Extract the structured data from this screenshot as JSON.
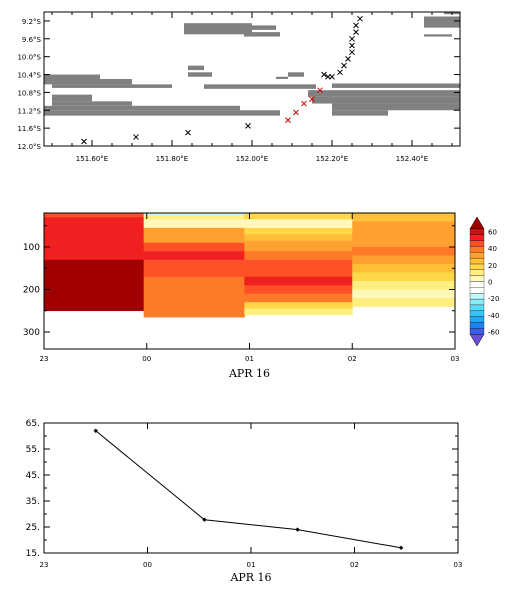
{
  "chart_data": [
    {
      "type": "scatter",
      "title": "",
      "xlabel": "",
      "ylabel": "",
      "xlim": [
        151.48,
        152.52
      ],
      "ylim": [
        -12.0,
        -9.0
      ],
      "y_reversed": false,
      "x_ticks": [
        151.6,
        151.8,
        152.0,
        152.2,
        152.4
      ],
      "x_tick_labels": [
        "151.60°E",
        "151.80°E",
        "152.00°E",
        "152.20°E",
        "152.40°E"
      ],
      "y_ticks": [
        -9.2,
        -9.6,
        -10.0,
        -10.4,
        -10.8,
        -11.2,
        -11.6,
        -12.0
      ],
      "y_tick_labels": [
        "9.2°S",
        "9.6°S",
        "10.0°S",
        "10.4°S",
        "10.8°S",
        "11.2°S",
        "11.6°S",
        "12.0°S"
      ],
      "land_color": "#808080",
      "land_bands": [
        {
          "x": [
            152.43,
            152.52
          ],
          "y": [
            -9.35,
            -9.1
          ]
        },
        {
          "x": [
            152.48,
            152.52
          ],
          "y": [
            -9.05,
            -9.0
          ]
        },
        {
          "x": [
            151.83,
            152.0
          ],
          "y": [
            -9.5,
            -9.25
          ]
        },
        {
          "x": [
            152.0,
            152.06
          ],
          "y": [
            -9.4,
            -9.3
          ]
        },
        {
          "x": [
            151.98,
            152.07
          ],
          "y": [
            -9.55,
            -9.45
          ]
        },
        {
          "x": [
            152.43,
            152.5
          ],
          "y": [
            -9.55,
            -9.5
          ]
        },
        {
          "x": [
            151.84,
            151.88
          ],
          "y": [
            -10.3,
            -10.2
          ]
        },
        {
          "x": [
            151.84,
            151.9
          ],
          "y": [
            -10.45,
            -10.35
          ]
        },
        {
          "x": [
            152.09,
            152.13
          ],
          "y": [
            -10.45,
            -10.35
          ]
        },
        {
          "x": [
            152.06,
            152.09
          ],
          "y": [
            -10.5,
            -10.45
          ]
        },
        {
          "x": [
            151.48,
            151.62
          ],
          "y": [
            -10.5,
            -10.4
          ]
        },
        {
          "x": [
            151.48,
            151.7
          ],
          "y": [
            -10.62,
            -10.5
          ]
        },
        {
          "x": [
            151.5,
            151.8
          ],
          "y": [
            -10.7,
            -10.62
          ]
        },
        {
          "x": [
            151.88,
            152.16
          ],
          "y": [
            -10.72,
            -10.62
          ]
        },
        {
          "x": [
            152.2,
            152.52
          ],
          "y": [
            -10.7,
            -10.6
          ]
        },
        {
          "x": [
            152.14,
            152.52
          ],
          "y": [
            -10.9,
            -10.75
          ]
        },
        {
          "x": [
            151.5,
            151.6
          ],
          "y": [
            -11.0,
            -10.85
          ]
        },
        {
          "x": [
            151.5,
            151.7
          ],
          "y": [
            -11.1,
            -11.0
          ]
        },
        {
          "x": [
            151.48,
            151.97
          ],
          "y": [
            -11.2,
            -11.1
          ]
        },
        {
          "x": [
            151.48,
            152.07
          ],
          "y": [
            -11.32,
            -11.2
          ]
        },
        {
          "x": [
            152.15,
            152.52
          ],
          "y": [
            -11.05,
            -10.9
          ]
        },
        {
          "x": [
            152.2,
            152.52
          ],
          "y": [
            -11.2,
            -11.05
          ]
        },
        {
          "x": [
            152.2,
            152.34
          ],
          "y": [
            -11.32,
            -11.2
          ]
        }
      ],
      "series": [
        {
          "marker": "x",
          "color": "#000000",
          "x": [
            151.58,
            151.71,
            151.84,
            151.99,
            152.18,
            152.19,
            152.2,
            152.22,
            152.23,
            152.24,
            152.25,
            152.25,
            152.25,
            152.26,
            152.26,
            152.27
          ],
          "y": [
            -11.9,
            -11.8,
            -11.7,
            -11.55,
            -10.4,
            -10.45,
            -10.45,
            -10.35,
            -10.2,
            -10.05,
            -9.9,
            -9.75,
            -9.6,
            -9.45,
            -9.3,
            -9.15
          ]
        },
        {
          "marker": "x",
          "color": "#cc0000",
          "x": [
            152.09,
            152.11,
            152.13,
            152.15,
            152.17
          ],
          "y": [
            -11.42,
            -11.25,
            -11.05,
            -10.95,
            -10.75
          ]
        }
      ]
    },
    {
      "type": "heatmap",
      "title": "",
      "xlabel": "APR 16",
      "ylabel": "",
      "xlim": [
        0,
        4
      ],
      "ylim": [
        340,
        20
      ],
      "y_reversed": true,
      "x_ticks": [
        0,
        1,
        2,
        3,
        4
      ],
      "x_tick_labels": [
        "23",
        "00",
        "01",
        "02",
        "03"
      ],
      "y_ticks": [
        100,
        200,
        300
      ],
      "y_tick_labels": [
        "100",
        "200",
        "300"
      ],
      "colorbar": {
        "ticks": [
          60,
          40,
          20,
          0,
          -20,
          -40,
          -60
        ],
        "tick_labels": [
          "60",
          "40",
          "20",
          "0",
          "-20",
          "-40",
          "-60"
        ],
        "range": [
          -70,
          70
        ],
        "colors": [
          "#6a4ed8",
          "#3a5ee8",
          "#1b84f0",
          "#1fa8f6",
          "#33c4f8",
          "#55dcf6",
          "#86ecf6",
          "#c2f6f8",
          "#ffffff",
          "#ffffff",
          "#fff8b8",
          "#ffee80",
          "#ffd84a",
          "#ffc038",
          "#ffa030",
          "#ff7a28",
          "#ff5028",
          "#f02020",
          "#d01010",
          "#a00000"
        ]
      },
      "columns": [
        {
          "x": [
            0,
            0.97
          ],
          "bands": [
            {
              "depth": [
                20,
                30
              ],
              "value": 45
            },
            {
              "depth": [
                30,
                60
              ],
              "value": 55
            },
            {
              "depth": [
                60,
                90
              ],
              "value": 52
            },
            {
              "depth": [
                90,
                130
              ],
              "value": 50
            },
            {
              "depth": [
                130,
                250
              ],
              "value": 65
            }
          ]
        },
        {
          "x": [
            0.97,
            1.95
          ],
          "bands": [
            {
              "depth": [
                20,
                25
              ],
              "value": -15
            },
            {
              "depth": [
                25,
                35
              ],
              "value": 12
            },
            {
              "depth": [
                35,
                55
              ],
              "value": 0
            },
            {
              "depth": [
                55,
                90
              ],
              "value": 28
            },
            {
              "depth": [
                90,
                110
              ],
              "value": 45
            },
            {
              "depth": [
                110,
                130
              ],
              "value": 52
            },
            {
              "depth": [
                130,
                150
              ],
              "value": 48
            },
            {
              "depth": [
                150,
                170
              ],
              "value": 42
            },
            {
              "depth": [
                170,
                265
              ],
              "value": 40
            }
          ]
        },
        {
          "x": [
            1.95,
            3.0
          ],
          "bands": [
            {
              "depth": [
                20,
                35
              ],
              "value": 18
            },
            {
              "depth": [
                35,
                55
              ],
              "value": 2
            },
            {
              "depth": [
                55,
                70
              ],
              "value": 15
            },
            {
              "depth": [
                70,
                85
              ],
              "value": 22
            },
            {
              "depth": [
                85,
                110
              ],
              "value": 30
            },
            {
              "depth": [
                110,
                130
              ],
              "value": 38
            },
            {
              "depth": [
                130,
                150
              ],
              "value": 46
            },
            {
              "depth": [
                150,
                170
              ],
              "value": 48
            },
            {
              "depth": [
                170,
                190
              ],
              "value": 55
            },
            {
              "depth": [
                190,
                210
              ],
              "value": 45
            },
            {
              "depth": [
                210,
                230
              ],
              "value": 35
            },
            {
              "depth": [
                230,
                245
              ],
              "value": 20
            },
            {
              "depth": [
                245,
                260
              ],
              "value": 10
            }
          ]
        },
        {
          "x": [
            3.0,
            4.0
          ],
          "bands": [
            {
              "depth": [
                20,
                40
              ],
              "value": 25
            },
            {
              "depth": [
                40,
                60
              ],
              "value": 30
            },
            {
              "depth": [
                60,
                80
              ],
              "value": 28
            },
            {
              "depth": [
                80,
                100
              ],
              "value": 32
            },
            {
              "depth": [
                100,
                120
              ],
              "value": 35
            },
            {
              "depth": [
                120,
                140
              ],
              "value": 30
            },
            {
              "depth": [
                140,
                160
              ],
              "value": 22
            },
            {
              "depth": [
                160,
                180
              ],
              "value": 15
            },
            {
              "depth": [
                180,
                200
              ],
              "value": 10
            },
            {
              "depth": [
                200,
                220
              ],
              "value": 6
            },
            {
              "depth": [
                220,
                240
              ],
              "value": 12
            }
          ]
        }
      ]
    },
    {
      "type": "line",
      "title": "",
      "xlabel": "APR 16",
      "ylabel": "",
      "xlim": [
        0,
        4
      ],
      "ylim": [
        15,
        65
      ],
      "x_ticks": [
        0,
        1,
        2,
        3,
        4
      ],
      "x_tick_labels": [
        "23",
        "00",
        "01",
        "02",
        "03"
      ],
      "y_ticks": [
        15,
        25,
        35,
        45,
        55,
        65
      ],
      "y_tick_labels": [
        "15.",
        "25.",
        "35.",
        "45.",
        "55.",
        "65."
      ],
      "series": [
        {
          "marker": "diamond",
          "color": "#000000",
          "x": [
            0.5,
            1.55,
            2.45,
            3.45
          ],
          "y": [
            62,
            27.8,
            24,
            17
          ]
        }
      ]
    }
  ]
}
